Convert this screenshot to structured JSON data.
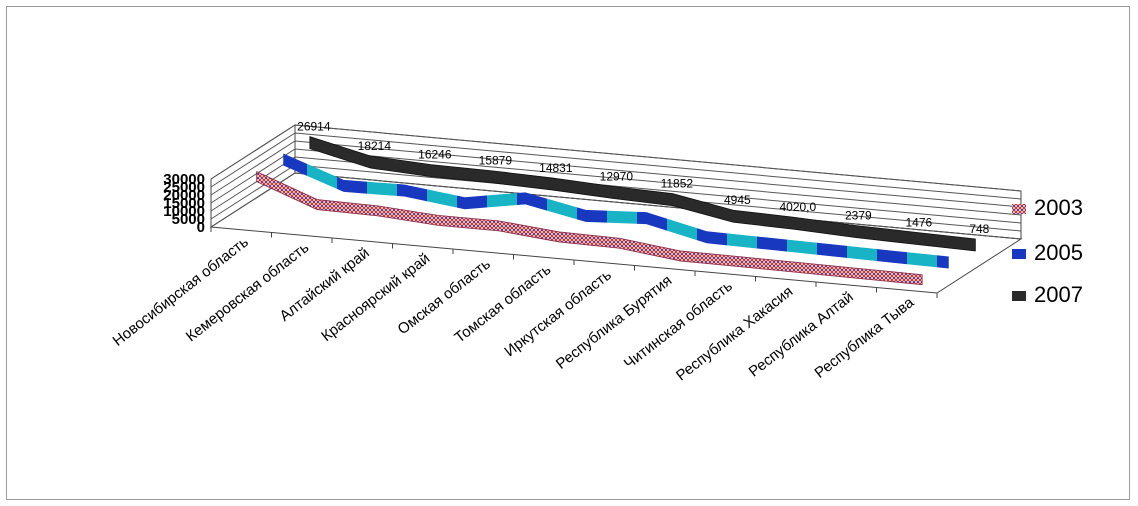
{
  "chart_data": {
    "type": "line",
    "title": "",
    "xlabel": "",
    "ylabel": "",
    "ylim": [
      0,
      30000
    ],
    "yticks": [
      "0",
      "5000",
      "10000",
      "15000",
      "20000",
      "25000",
      "30000"
    ],
    "categories": [
      "Новосибирская область",
      "Кемеровская область",
      "Алтайский край",
      "Красноярский край",
      "Омская область",
      "Томская область",
      "Иркутская область",
      "Республика Бурятия",
      "Читинская область",
      "Республика Хакасия",
      "Республика Алтай",
      "Республика Тыва"
    ],
    "series": [
      {
        "name": "2003",
        "values": [
          27000,
          13000,
          12500,
          10000,
          10000,
          6500,
          6000,
          1500,
          1300,
          1000,
          700,
          400
        ]
      },
      {
        "name": "2005",
        "values": [
          27000,
          14000,
          14500,
          10000,
          16500,
          9000,
          11000,
          2500,
          2000,
          1500,
          900,
          500
        ]
      },
      {
        "name": "2007",
        "values": [
          26914,
          18214,
          16246,
          15879,
          14831,
          12970,
          11852,
          4945,
          4020,
          2379,
          1476,
          748
        ]
      }
    ],
    "data_labels": [
      "26914",
      "18214",
      "16246",
      "15879",
      "14831",
      "12970",
      "11852",
      "4945",
      "4020,0",
      "2379",
      "1476",
      "748"
    ],
    "legend": [
      "2003",
      "2005",
      "2007"
    ],
    "legend_position": "right",
    "grid": true,
    "colors": {
      "s2003": "#c84a4a",
      "s2005": "#1ab0c8",
      "s2005_alt": "#1030c0",
      "s2007": "#222222"
    }
  }
}
